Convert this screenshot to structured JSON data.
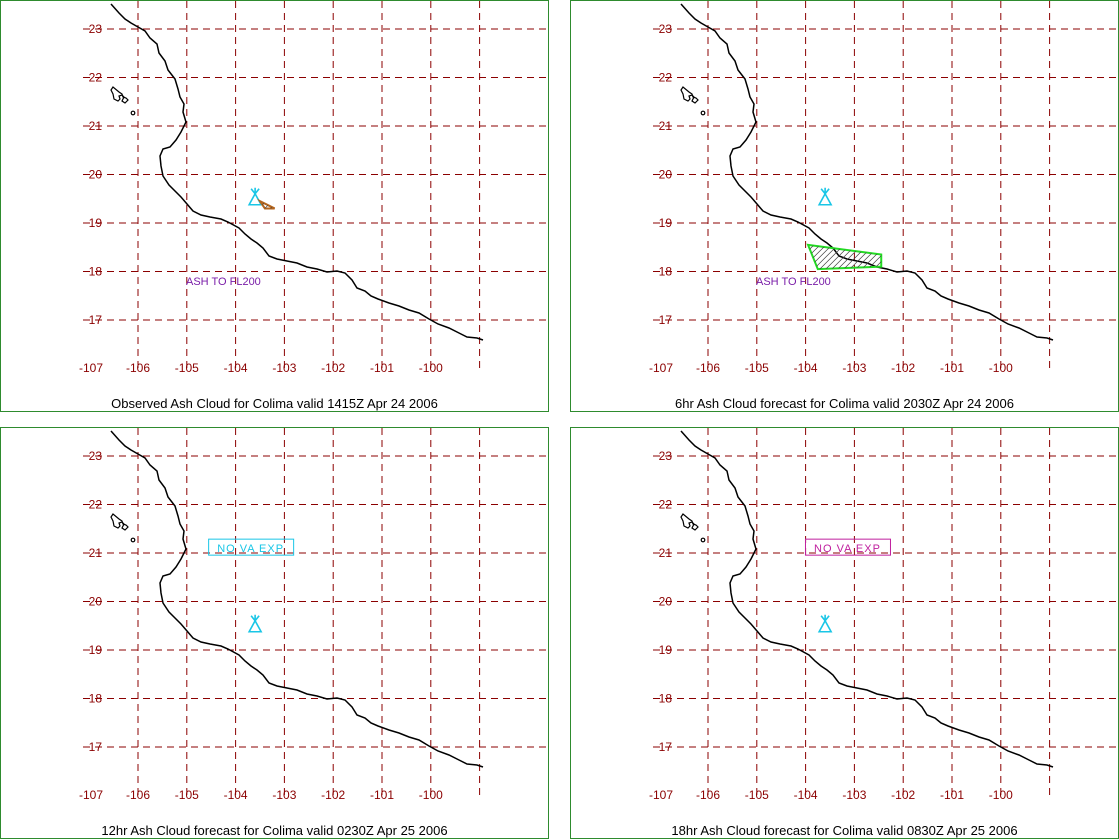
{
  "tick_labels": {
    "lat": [
      "23",
      "22",
      "21",
      "20",
      "19",
      "18",
      "17"
    ],
    "lon": [
      "-107",
      "-106",
      "-105",
      "-104",
      "-103",
      "-102",
      "-101",
      "-100"
    ]
  },
  "colors": {
    "grid": "#8b0000",
    "coast": "#000000",
    "volcano": "#19c6e6",
    "ash_label": "#7a1ea8",
    "obs_ash": "#b5651d",
    "fcst_ash": "#22dd22",
    "nova_cyan": "#19c6e6",
    "nova_magenta": "#c0209f",
    "panel_border": "#2e8b2e"
  },
  "panels": [
    {
      "caption": "Observed Ash Cloud for Colima valid 1415Z Apr 24 2006",
      "label": "ASH TO FL200",
      "label_color": "#7a1ea8",
      "label_boxed": false,
      "ash_polygon": [
        [
          -103.5,
          19.45
        ],
        [
          -103.2,
          19.3
        ],
        [
          -103.4,
          19.3
        ]
      ],
      "ash_color": "#b5651d"
    },
    {
      "caption": "6hr Ash Cloud forecast for Colima valid 2030Z Apr 24 2006",
      "label": "ASH TO FL200",
      "label_color": "#7a1ea8",
      "label_boxed": false,
      "ash_polygon": [
        [
          -103.95,
          18.55
        ],
        [
          -102.45,
          18.35
        ],
        [
          -102.45,
          18.1
        ],
        [
          -103.75,
          18.05
        ]
      ],
      "ash_color": "#22dd22"
    },
    {
      "caption": "12hr Ash Cloud forecast for Colima valid 0230Z Apr 25 2006",
      "label": "NO VA EXP",
      "label_color": "#19c6e6",
      "label_boxed": true,
      "ash_polygon": null,
      "ash_color": null
    },
    {
      "caption": "18hr Ash Cloud forecast for Colima valid 0830Z Apr 25 2006",
      "label": "NO VA EXP",
      "label_color": "#c0209f",
      "label_boxed": true,
      "ash_polygon": null,
      "ash_color": null
    }
  ]
}
